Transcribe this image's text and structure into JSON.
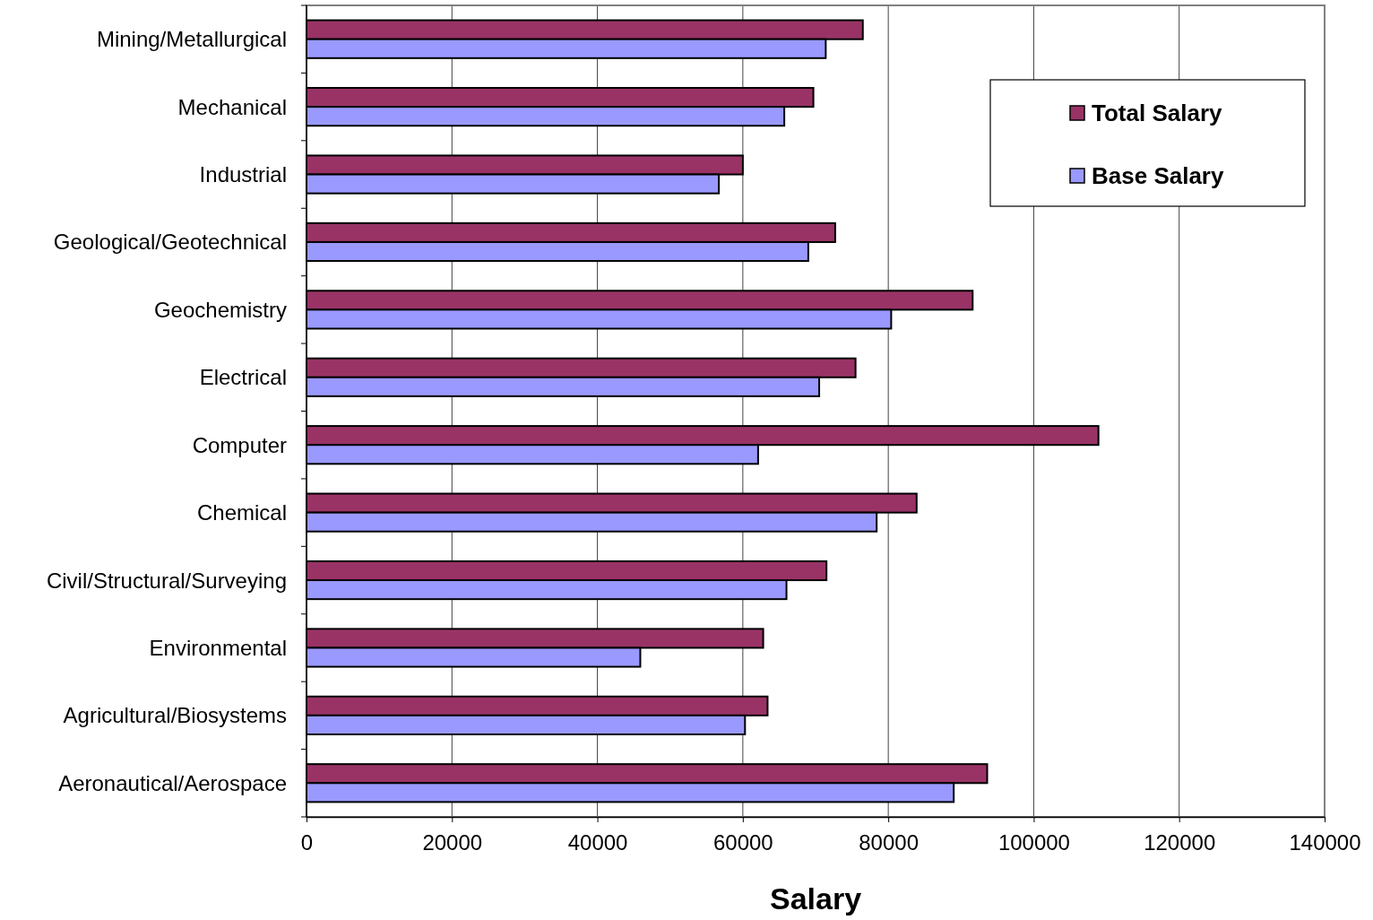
{
  "chart_data": {
    "type": "bar",
    "orientation": "horizontal",
    "xlabel": "Salary",
    "categories": [
      "Mining/Metallurgical",
      "Mechanical",
      "Industrial",
      "Geological/Geotechnical",
      "Geochemistry",
      "Electrical",
      "Computer",
      "Chemical",
      "Civil/Structural/Surveying",
      "Environmental",
      "Agricultural/Biosystems",
      "Aeronautical/Aerospace"
    ],
    "series": [
      {
        "name": "Total Salary",
        "color": "#993366",
        "values": [
          76500,
          69700,
          60000,
          72700,
          91600,
          75500,
          108900,
          83900,
          71500,
          62800,
          63400,
          93600
        ]
      },
      {
        "name": "Base Salary",
        "color": "#9999ff",
        "values": [
          71400,
          65700,
          56700,
          69000,
          80400,
          70500,
          62100,
          78400,
          66000,
          45900,
          60300,
          89000
        ]
      }
    ],
    "xlim": [
      0,
      140000
    ],
    "xticks": [
      0,
      20000,
      40000,
      60000,
      80000,
      100000,
      120000,
      140000
    ],
    "grid": "x",
    "legend": "top right"
  }
}
